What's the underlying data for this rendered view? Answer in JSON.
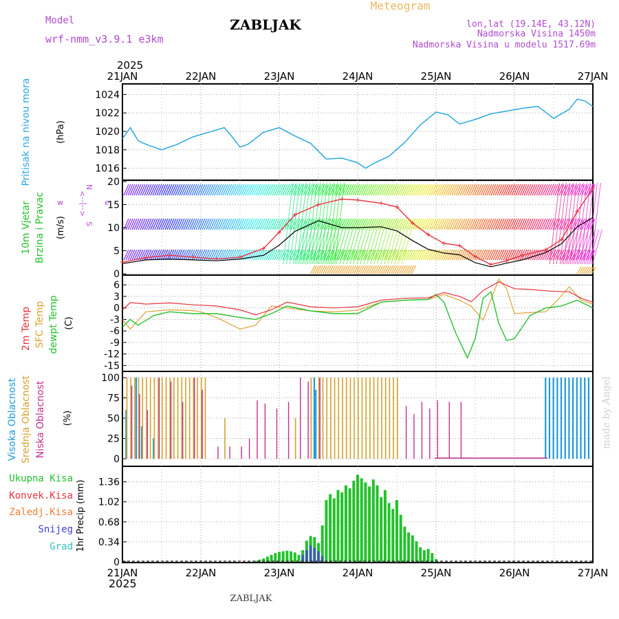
{
  "header": {
    "model_label": "Model",
    "model_name": "wrf-nmm_v3.9.1 e3km",
    "station": "ZABLJAK",
    "meteogram": "Meteogram",
    "lonlat": "lon,lat (19.14E, 43.12N)",
    "elevation": "Nadmorska Visina 1450m",
    "model_elevation": "Nadmorska Visina u modelu 1517.69m",
    "year": "2025",
    "footer_station": "ZABLJAK",
    "watermark": "made by Angel"
  },
  "colors": {
    "pressure": "#2aa7e0",
    "wind_speed": "#e8323c",
    "wind_mean": "#000000",
    "temp2m": "#e8323c",
    "sfc": "#e0a030",
    "dewpt": "#22c22a",
    "high_cloud": "#1f9ad8",
    "mid_cloud": "#d4a02c",
    "low_cloud": "#c2308a",
    "precip_total": "#22c22a",
    "precip_conv": "#e8323c",
    "precip_frz": "#f07a30",
    "precip_snow": "#4040d0",
    "precip_hail": "#30c0c0",
    "label_magenta": "#b04ad0",
    "label_orange": "#e8b860"
  },
  "chart_data": [
    {
      "type": "line",
      "panel": "pressure",
      "title": "Pritisak na nivou mora",
      "ylabel": "(hPa)",
      "ylim": [
        1015,
        1025
      ],
      "yticks": [
        1016,
        1018,
        1020,
        1022,
        1024
      ],
      "xlim": [
        0,
        6
      ],
      "xticks": [
        "21JAN",
        "22JAN",
        "23JAN",
        "24JAN",
        "25JAN",
        "26JAN",
        "27JAN"
      ],
      "x": [
        0,
        0.1,
        0.2,
        0.3,
        0.5,
        0.7,
        0.9,
        1.1,
        1.3,
        1.4,
        1.5,
        1.6,
        1.8,
        2.0,
        2.2,
        2.4,
        2.6,
        2.8,
        3.0,
        3.1,
        3.2,
        3.4,
        3.6,
        3.8,
        4.0,
        4.15,
        4.3,
        4.5,
        4.7,
        4.9,
        5.1,
        5.3,
        5.5,
        5.7,
        5.8,
        5.9,
        6.0
      ],
      "y": [
        1019.2,
        1020.4,
        1019.0,
        1018.6,
        1018.0,
        1018.6,
        1019.4,
        1019.9,
        1020.4,
        1019.4,
        1018.3,
        1018.6,
        1019.9,
        1020.4,
        1019.5,
        1018.7,
        1017.0,
        1017.1,
        1016.6,
        1016.0,
        1016.5,
        1017.3,
        1018.8,
        1020.7,
        1022.1,
        1021.8,
        1020.8,
        1021.3,
        1021.9,
        1022.2,
        1022.5,
        1022.7,
        1021.4,
        1022.4,
        1023.5,
        1023.3,
        1022.7
      ]
    },
    {
      "type": "line",
      "panel": "wind",
      "title": "10m Vjetar",
      "subtitle": "Brzina i Pravac",
      "ylabel": "(m/s)",
      "compass": [
        "w",
        "<--|-->",
        "e",
        "N",
        "S"
      ],
      "ylim": [
        0,
        20
      ],
      "yticks": [
        0,
        5,
        10,
        15,
        20
      ],
      "xlim": [
        0,
        6
      ],
      "series": [
        {
          "name": "wind speed",
          "x": [
            0,
            0.3,
            0.6,
            0.9,
            1.2,
            1.5,
            1.8,
            2.0,
            2.2,
            2.5,
            2.8,
            3.0,
            3.3,
            3.5,
            3.7,
            3.9,
            4.1,
            4.3,
            4.5,
            4.7,
            4.9,
            5.1,
            5.4,
            5.6,
            5.8,
            6.0
          ],
          "y": [
            2.5,
            3.5,
            4.0,
            3.6,
            3.2,
            3.6,
            5.5,
            9.0,
            12.8,
            15.0,
            16.2,
            16.0,
            15.3,
            14.5,
            11.0,
            8.5,
            6.6,
            6.1,
            3.7,
            2.0,
            2.8,
            4.0,
            5.2,
            7.4,
            13.5,
            18.5
          ]
        },
        {
          "name": "mean wind",
          "x": [
            0,
            0.3,
            0.6,
            0.9,
            1.2,
            1.5,
            1.8,
            2.0,
            2.2,
            2.5,
            2.8,
            3.0,
            3.3,
            3.5,
            3.7,
            3.9,
            4.1,
            4.3,
            4.5,
            4.7,
            4.9,
            5.1,
            5.4,
            5.6,
            5.8,
            6.0
          ],
          "y": [
            2.2,
            3.0,
            3.2,
            3.0,
            2.8,
            3.2,
            4.0,
            6.2,
            9.2,
            11.5,
            10.0,
            10.0,
            10.2,
            9.3,
            7.2,
            5.3,
            4.5,
            4.1,
            2.4,
            1.5,
            2.3,
            3.0,
            4.6,
            6.5,
            10.2,
            12.2
          ]
        }
      ]
    },
    {
      "type": "line",
      "panel": "temperature",
      "labels": [
        "2m Temp",
        "SFC Temp",
        "dewpt Temp"
      ],
      "ylabel": "(C)",
      "ylim": [
        -16,
        8
      ],
      "yticks": [
        6,
        3,
        0,
        -3,
        -6,
        -9,
        -12,
        -15
      ],
      "xlim": [
        0,
        6
      ],
      "series": [
        {
          "name": "2m Temp",
          "x": [
            0,
            0.1,
            0.3,
            0.6,
            0.9,
            1.2,
            1.5,
            1.7,
            1.9,
            2.1,
            2.4,
            2.7,
            3.0,
            3.3,
            3.6,
            3.9,
            4.1,
            4.3,
            4.45,
            4.6,
            4.8,
            5.0,
            5.2,
            5.5,
            5.7,
            5.85,
            6.0
          ],
          "y": [
            -0.5,
            1.4,
            1.0,
            1.3,
            0.8,
            0.5,
            -0.5,
            -1.8,
            -0.5,
            1.5,
            0.3,
            0.0,
            0.3,
            2.0,
            2.5,
            2.6,
            4.0,
            3.0,
            1.6,
            4.5,
            6.8,
            5.0,
            4.8,
            4.3,
            4.2,
            2.5,
            1.5
          ]
        },
        {
          "name": "SFC Temp",
          "x": [
            0,
            0.1,
            0.3,
            0.6,
            0.9,
            1.0,
            1.2,
            1.5,
            1.7,
            1.9,
            2.1,
            2.4,
            2.7,
            3.0,
            3.3,
            3.6,
            3.9,
            4.1,
            4.3,
            4.45,
            4.6,
            4.8,
            4.9,
            5.0,
            5.2,
            5.4,
            5.5,
            5.7,
            5.85,
            6.0
          ],
          "y": [
            -3.0,
            -5.5,
            -1.0,
            -0.5,
            -0.7,
            -1.0,
            -2.5,
            -5.5,
            -4.5,
            0.5,
            0.0,
            -0.8,
            -1.0,
            -0.6,
            1.5,
            2.0,
            2.2,
            3.5,
            2.0,
            0.4,
            -3.2,
            7.5,
            5.0,
            -1.5,
            -1.2,
            -1.0,
            1.0,
            5.5,
            2.0,
            1.0
          ]
        },
        {
          "name": "dewpt Temp",
          "x": [
            0,
            0.1,
            0.2,
            0.4,
            0.6,
            0.9,
            1.2,
            1.5,
            1.7,
            1.9,
            2.1,
            2.4,
            2.7,
            3.0,
            3.3,
            3.6,
            3.9,
            4.0,
            4.1,
            4.25,
            4.4,
            4.5,
            4.6,
            4.7,
            4.8,
            4.9,
            5.0,
            5.2,
            5.4,
            5.6,
            5.8,
            6.0
          ],
          "y": [
            -5.0,
            -3.0,
            -4.5,
            -2.0,
            -1.0,
            -1.5,
            -1.5,
            -2.5,
            -3.0,
            -1.5,
            0.5,
            -0.8,
            -1.5,
            -1.5,
            1.5,
            2.0,
            2.2,
            3.5,
            1.5,
            -6.5,
            -13.0,
            -8.0,
            2.5,
            4.2,
            -4.0,
            -8.5,
            -8.0,
            -2.0,
            0.0,
            0.5,
            2.0,
            0.0
          ]
        }
      ]
    },
    {
      "type": "bar",
      "panel": "clouds",
      "labels": [
        "Visoka Oblacnost",
        "Srednja Oblacnost",
        "Niska Oblacnost"
      ],
      "ylabel": "(%)",
      "ylim": [
        0,
        100
      ],
      "yticks": [
        0,
        25,
        50,
        75,
        100
      ],
      "xlim": [
        0,
        6
      ],
      "series": [
        {
          "name": "Visoka Oblacnost",
          "x": [
            0.05,
            0.18,
            0.25,
            0.4,
            2.45,
            2.47,
            5.4,
            5.45,
            5.5,
            5.55,
            5.6,
            5.65,
            5.7,
            5.75,
            5.8,
            5.85,
            5.9,
            5.95
          ],
          "values": [
            60,
            100,
            40,
            25,
            100,
            85,
            100,
            100,
            100,
            100,
            100,
            100,
            100,
            100,
            100,
            100,
            100,
            100
          ]
        },
        {
          "name": "Srednja Oblacnost",
          "x": [
            0.05,
            0.1,
            0.15,
            0.2,
            0.25,
            0.3,
            0.35,
            0.4,
            0.45,
            0.5,
            0.55,
            0.6,
            0.65,
            0.7,
            0.75,
            0.8,
            0.85,
            0.9,
            0.95,
            1.0,
            1.05,
            1.3,
            2.2,
            2.4,
            2.5,
            2.55,
            2.6,
            2.65,
            2.7,
            2.75,
            2.8,
            2.85,
            2.9,
            2.95,
            3.0,
            3.05,
            3.1,
            3.15,
            3.2,
            3.25,
            3.3,
            3.35,
            3.4,
            3.45,
            3.5
          ],
          "values": [
            100,
            100,
            100,
            100,
            100,
            100,
            100,
            100,
            100,
            100,
            100,
            100,
            100,
            100,
            100,
            100,
            100,
            100,
            100,
            100,
            100,
            50,
            50,
            100,
            100,
            100,
            100,
            100,
            100,
            100,
            100,
            100,
            100,
            100,
            100,
            100,
            100,
            100,
            100,
            100,
            100,
            100,
            100,
            100,
            100
          ]
        },
        {
          "name": "Niska Oblacnost",
          "x": [
            0.1,
            0.2,
            0.3,
            0.45,
            0.6,
            0.75,
            0.9,
            1.0,
            1.2,
            1.35,
            1.5,
            1.6,
            1.7,
            1.8,
            1.95,
            2.1,
            2.25,
            2.35,
            2.5,
            3.6,
            3.7,
            3.8,
            3.9,
            4.0,
            4.15,
            4.3
          ],
          "values": [
            90,
            80,
            60,
            100,
            95,
            70,
            100,
            85,
            15,
            15,
            15,
            25,
            72,
            68,
            62,
            70,
            100,
            95,
            100,
            65,
            55,
            70,
            62,
            72,
            70,
            70
          ]
        }
      ]
    },
    {
      "type": "bar",
      "panel": "precip",
      "labels": [
        "Ukupna Kisa",
        "Konvek.Kisa",
        "Zaledj.Kisa",
        "Snijeg",
        "Grad"
      ],
      "ylabel": "1hr Precip (mm)",
      "ylim": [
        0,
        1.6
      ],
      "yticks": [
        0,
        0.34,
        0.68,
        1.02,
        1.36
      ],
      "ytick_labels": [
        "0",
        "0.34",
        "0.68",
        "1.02",
        "1.36"
      ],
      "xlim": [
        0,
        6
      ],
      "xticks": [
        "21JAN",
        "22JAN",
        "23JAN",
        "24JAN",
        "25JAN",
        "26JAN",
        "27JAN"
      ],
      "series": [
        {
          "name": "Ukupna Kisa",
          "x": [
            1.7,
            1.75,
            1.8,
            1.85,
            1.9,
            1.95,
            2.0,
            2.05,
            2.1,
            2.15,
            2.2,
            2.25,
            2.3,
            2.35,
            2.4,
            2.45,
            2.5,
            2.55,
            2.6,
            2.65,
            2.7,
            2.75,
            2.8,
            2.85,
            2.9,
            2.95,
            3.0,
            3.05,
            3.1,
            3.15,
            3.2,
            3.25,
            3.3,
            3.35,
            3.4,
            3.45,
            3.5,
            3.55,
            3.6,
            3.65,
            3.7,
            3.75,
            3.8,
            3.85,
            3.9,
            3.95,
            4.0
          ],
          "values": [
            0.02,
            0.04,
            0.06,
            0.09,
            0.12,
            0.15,
            0.17,
            0.18,
            0.19,
            0.18,
            0.16,
            0.12,
            0.2,
            0.36,
            0.44,
            0.42,
            0.32,
            0.62,
            1.05,
            1.15,
            1.08,
            1.22,
            1.18,
            1.3,
            1.25,
            1.38,
            1.48,
            1.42,
            1.35,
            1.28,
            1.4,
            1.3,
            1.1,
            1.22,
            1.0,
            0.9,
            1.05,
            0.8,
            0.6,
            0.5,
            0.45,
            0.35,
            0.25,
            0.2,
            0.22,
            0.15,
            0.05
          ]
        },
        {
          "name": "Snijeg",
          "x": [
            2.3,
            2.35,
            2.4,
            2.45,
            2.5,
            2.55
          ],
          "values": [
            0.12,
            0.2,
            0.28,
            0.24,
            0.18,
            0.1
          ]
        }
      ]
    }
  ]
}
